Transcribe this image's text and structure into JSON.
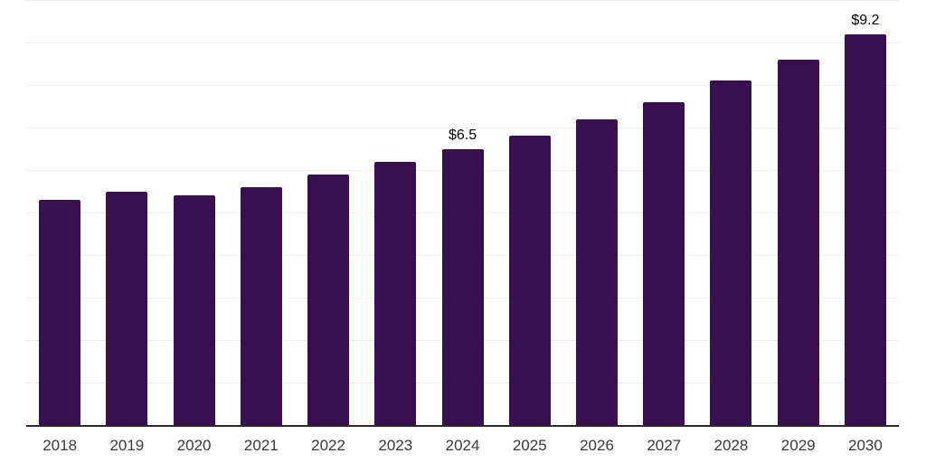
{
  "chart_data": {
    "type": "bar",
    "title": "",
    "xlabel": "",
    "ylabel": "",
    "categories": [
      "2018",
      "2019",
      "2020",
      "2021",
      "2022",
      "2023",
      "2024",
      "2025",
      "2026",
      "2027",
      "2028",
      "2029",
      "2030"
    ],
    "values": [
      5.3,
      5.5,
      5.4,
      5.6,
      5.9,
      6.2,
      6.5,
      6.8,
      7.2,
      7.6,
      8.1,
      8.6,
      9.2
    ],
    "data_labels": [
      "",
      "",
      "",
      "",
      "",
      "",
      "$6.5",
      "",
      "",
      "",
      "",
      "",
      "$9.2"
    ],
    "ylim": [
      0,
      10
    ],
    "gridline_step": 1,
    "grid": "horizontal",
    "legend_position": "none",
    "colors": {
      "bar": "#38104f",
      "axis_line": "#2b2b2b",
      "gridline": "#f2f2f2",
      "gridline_top": "#ececec",
      "tick_label": "#3a3a3a",
      "data_label": "#000000",
      "background": "#ffffff"
    }
  }
}
